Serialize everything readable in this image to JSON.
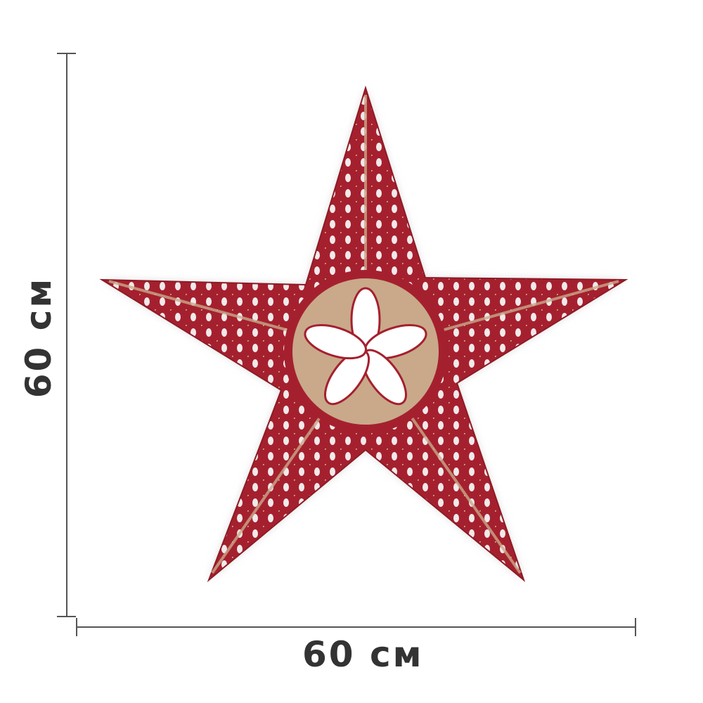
{
  "dimensions": {
    "height_label": "60 см",
    "width_label": "60 см"
  },
  "product": {
    "name_icon": "paper-star-lamp",
    "colors": {
      "primary": "#a5202e",
      "secondary": "#ffffff",
      "accent": "#b89a7a"
    }
  }
}
